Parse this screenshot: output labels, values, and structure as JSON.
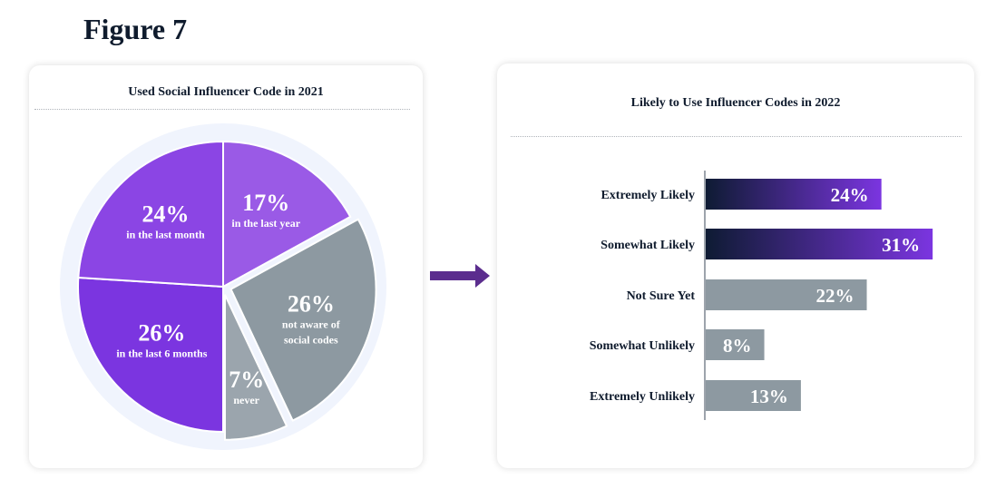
{
  "figure_title": "Figure 7",
  "colors": {
    "purple_dark": "#7b35e0",
    "purple_mid": "#8b45e4",
    "purple_light": "#9a5ae6",
    "gray": "#8d99a1",
    "gray_light": "#9ba5ad",
    "navy": "#0e1b33",
    "ring": "#f0f4fd",
    "arrow": "#5b2d8e"
  },
  "chart_data": [
    {
      "type": "pie",
      "title": "Used Social Influencer Code in 2021",
      "slices": [
        {
          "value": 17,
          "pct_label": "17%",
          "label": "in the last year",
          "color": "#9a5ae6",
          "exploded": false
        },
        {
          "value": 26,
          "pct_label": "26%",
          "label": "not aware of social codes",
          "label_lines": [
            "not aware of",
            "social codes"
          ],
          "color": "#8d99a1",
          "exploded": true
        },
        {
          "value": 7,
          "pct_label": "7%",
          "label": "never",
          "color": "#9ba5ad",
          "exploded": true
        },
        {
          "value": 26,
          "pct_label": "26%",
          "label": "in the last 6 months",
          "color": "#7b35e0",
          "exploded": false
        },
        {
          "value": 24,
          "pct_label": "24%",
          "label": "in the last month",
          "color": "#8b45e4",
          "exploded": false
        }
      ]
    },
    {
      "type": "bar",
      "orientation": "horizontal",
      "title": "Likely to Use Influencer Codes in 2022",
      "categories": [
        "Extremely Likely",
        "Somewhat Likely",
        "Not Sure Yet",
        "Somewhat Unlikely",
        "Extremely Unlikely"
      ],
      "values": [
        24,
        31,
        22,
        8,
        13
      ],
      "value_labels": [
        "24%",
        "31%",
        "22%",
        "8%",
        "13%"
      ],
      "styles": [
        "gradient",
        "gradient",
        "gray",
        "gray",
        "gray"
      ]
    }
  ]
}
